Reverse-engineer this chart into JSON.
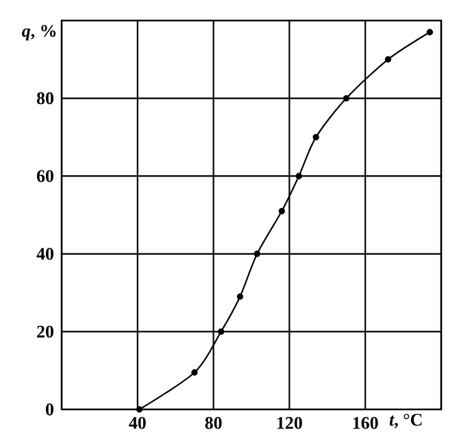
{
  "chart_data": {
    "type": "line",
    "xlabel": "*t*, °C",
    "ylabel": "*q*, %",
    "xlim": [
      0,
      200
    ],
    "xticks": [
      40,
      80,
      120,
      160
    ],
    "ylim": [
      0,
      100
    ],
    "yticks": [
      0,
      20,
      40,
      60,
      80
    ],
    "grid": true,
    "marker": "circle",
    "series": [
      {
        "color": "#000000",
        "x": [
          41,
          70,
          84,
          94,
          103,
          116,
          125,
          134,
          150,
          172,
          194
        ],
        "values": [
          0,
          9.5,
          20,
          29,
          40,
          51,
          60,
          70,
          80,
          90,
          97
        ]
      }
    ]
  }
}
